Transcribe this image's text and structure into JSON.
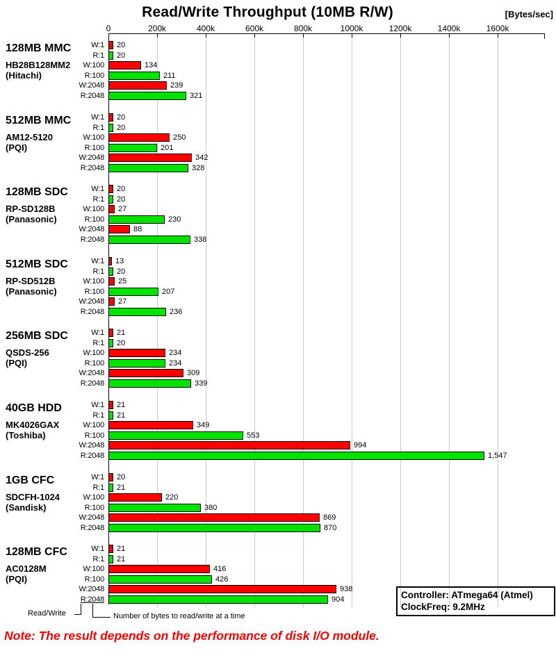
{
  "title": "Read/Write Throughput (10MB R/W)",
  "units_label": "[Bytes/sec]",
  "chart_data": {
    "type": "bar",
    "orientation": "horizontal",
    "value_unit": "Bytes/sec",
    "note": "bar value labels are in thousands of Bytes/sec",
    "x_axis": {
      "tick_labels": [
        "0",
        "200k",
        "400k",
        "600k",
        "800k",
        "1000k",
        "1200k",
        "1400k",
        "1600k"
      ],
      "tick_values_k": [
        0,
        200,
        400,
        600,
        800,
        1000,
        1200,
        1400,
        1600
      ],
      "axis_max_k": 1790,
      "grid": true
    },
    "row_labels": [
      "W:1",
      "R:1",
      "W:100",
      "R:100",
      "W:2048",
      "R:2048"
    ],
    "colors": {
      "write_bar": "#ff0000",
      "read_bar": "#00e400",
      "grid_line": "#c9c9c9",
      "axis_line": "#000000",
      "note_text": "#ff0000"
    },
    "groups": [
      {
        "device": "128MB MMC",
        "model": "HB28B128MM2",
        "vendor": "(Hitachi)",
        "values_k": [
          20,
          20,
          134,
          211,
          239,
          321
        ],
        "value_labels": [
          "20",
          "20",
          "134",
          "211",
          "239",
          "321"
        ]
      },
      {
        "device": "512MB MMC",
        "model": "AM12-5120",
        "vendor": "(PQI)",
        "values_k": [
          20,
          20,
          250,
          201,
          342,
          328
        ],
        "value_labels": [
          "20",
          "20",
          "250",
          "201",
          "342",
          "328"
        ]
      },
      {
        "device": "128MB SDC",
        "model": "RP-SD128B",
        "vendor": "(Panasonic)",
        "values_k": [
          20,
          20,
          27,
          230,
          88,
          338
        ],
        "value_labels": [
          "20",
          "20",
          "27",
          "230",
          "88",
          "338"
        ]
      },
      {
        "device": "512MB SDC",
        "model": "RP-SD512B",
        "vendor": "(Panasonic)",
        "values_k": [
          13,
          20,
          25,
          207,
          27,
          236
        ],
        "value_labels": [
          "13",
          "20",
          "25",
          "207",
          "27",
          "236"
        ]
      },
      {
        "device": "256MB SDC",
        "model": "QSDS-256",
        "vendor": "(PQI)",
        "values_k": [
          21,
          20,
          234,
          234,
          309,
          339
        ],
        "value_labels": [
          "21",
          "20",
          "234",
          "234",
          "309",
          "339"
        ]
      },
      {
        "device": "40GB HDD",
        "model": "MK4026GAX",
        "vendor": "(Toshiba)",
        "values_k": [
          21,
          21,
          349,
          553,
          994,
          1547
        ],
        "value_labels": [
          "21",
          "21",
          "349",
          "553",
          "994",
          "1,547"
        ]
      },
      {
        "device": "1GB CFC",
        "model": "SDCFH-1024",
        "vendor": "(Sandisk)",
        "values_k": [
          20,
          21,
          220,
          380,
          869,
          870
        ],
        "value_labels": [
          "20",
          "21",
          "220",
          "380",
          "869",
          "870"
        ]
      },
      {
        "device": "128MB CFC",
        "model": "AC0128M",
        "vendor": "(PQI)",
        "values_k": [
          21,
          21,
          416,
          426,
          938,
          904
        ],
        "value_labels": [
          "21",
          "21",
          "416",
          "426",
          "938",
          "904"
        ]
      }
    ]
  },
  "callouts": {
    "read_write_label": "Read/Write",
    "bytes_label": "Number of bytes to read/write at a time"
  },
  "info_box": {
    "controller": "Controller: ATmega64 (Atmel)",
    "clock": "ClockFreq: 9.2MHz"
  },
  "footnote": "Note: The result depends on the performance of disk I/O module."
}
